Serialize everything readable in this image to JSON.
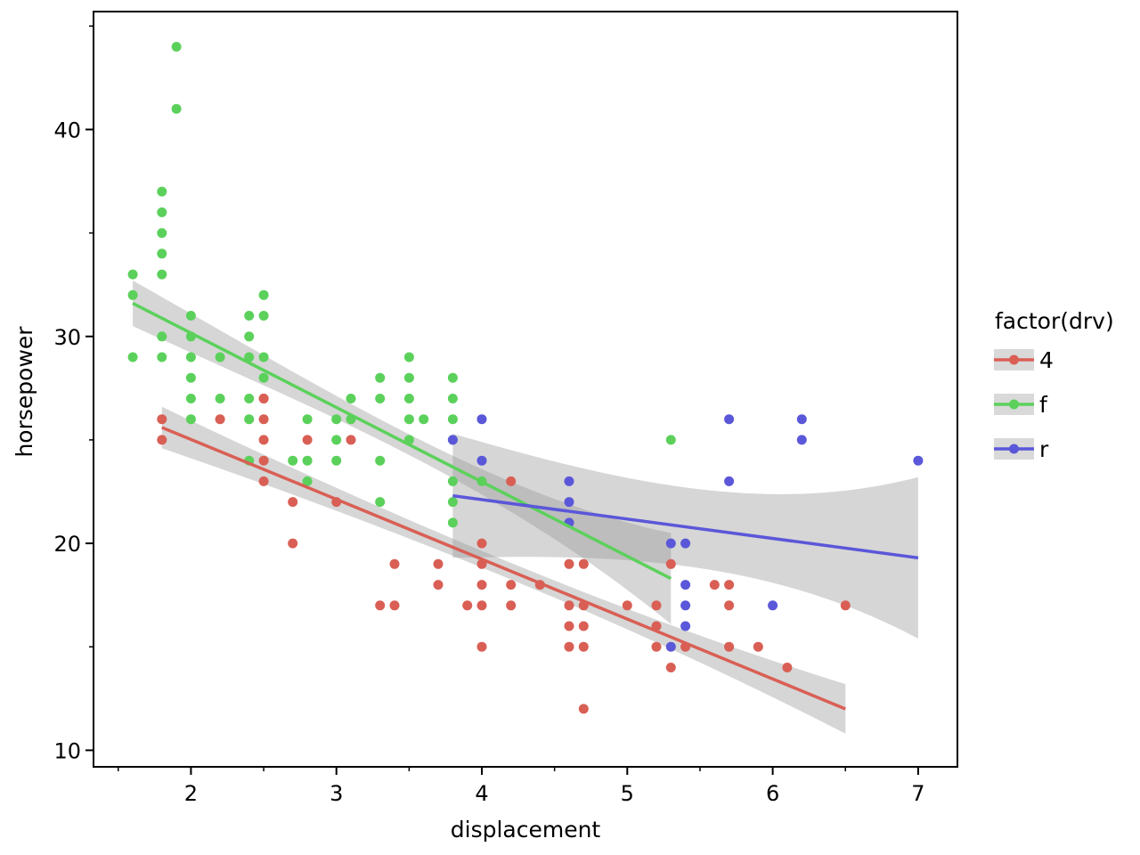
{
  "chart_data": {
    "type": "scatter",
    "xlabel": "displacement",
    "ylabel": "horsepower",
    "xlim": [
      1.33,
      7.27
    ],
    "ylim": [
      9.2,
      45.7
    ],
    "x_ticks": [
      2,
      3,
      4,
      5,
      6,
      7
    ],
    "x_minor_ticks": [
      1.5,
      2.5,
      3.5,
      4.5,
      5.5,
      6.5
    ],
    "y_ticks": [
      10,
      20,
      30,
      40
    ],
    "y_minor_ticks": [
      15,
      25,
      35,
      45
    ],
    "grid": false,
    "legend": {
      "title": "factor(drv)",
      "position": "right"
    },
    "series": [
      {
        "name": "4",
        "color": "#d95f55",
        "points": [
          [
            1.8,
            26
          ],
          [
            1.8,
            25
          ],
          [
            2.2,
            26
          ],
          [
            2.5,
            27
          ],
          [
            2.5,
            26
          ],
          [
            2.5,
            25
          ],
          [
            2.5,
            24
          ],
          [
            2.5,
            23
          ],
          [
            2.5,
            27
          ],
          [
            2.7,
            22
          ],
          [
            2.7,
            20
          ],
          [
            2.8,
            25
          ],
          [
            3.0,
            22
          ],
          [
            3.1,
            25
          ],
          [
            3.3,
            17
          ],
          [
            3.4,
            19
          ],
          [
            3.4,
            17
          ],
          [
            3.7,
            19
          ],
          [
            3.7,
            18
          ],
          [
            3.9,
            17
          ],
          [
            4.0,
            20
          ],
          [
            4.0,
            19
          ],
          [
            4.0,
            18
          ],
          [
            4.0,
            17
          ],
          [
            4.0,
            15
          ],
          [
            4.2,
            23
          ],
          [
            4.2,
            18
          ],
          [
            4.2,
            17
          ],
          [
            4.4,
            18
          ],
          [
            4.6,
            19
          ],
          [
            4.6,
            17
          ],
          [
            4.6,
            16
          ],
          [
            4.6,
            15
          ],
          [
            4.7,
            19
          ],
          [
            4.7,
            17
          ],
          [
            4.7,
            16
          ],
          [
            4.7,
            15
          ],
          [
            4.7,
            12
          ],
          [
            5.0,
            17
          ],
          [
            5.2,
            17
          ],
          [
            5.2,
            16
          ],
          [
            5.2,
            15
          ],
          [
            5.3,
            19
          ],
          [
            5.3,
            14
          ],
          [
            5.4,
            15
          ],
          [
            5.6,
            18
          ],
          [
            5.7,
            18
          ],
          [
            5.7,
            17
          ],
          [
            5.7,
            15
          ],
          [
            5.9,
            15
          ],
          [
            6.1,
            14
          ],
          [
            6.5,
            17
          ]
        ],
        "fit": {
          "x_range": [
            1.8,
            6.5
          ],
          "y_range": [
            25.6,
            12.0
          ],
          "band_halfwidth_ends": [
            1.0,
            1.2
          ],
          "band_halfwidth_mid": 0.4
        }
      },
      {
        "name": "f",
        "color": "#5bd15b",
        "points": [
          [
            1.6,
            33
          ],
          [
            1.6,
            32
          ],
          [
            1.6,
            29
          ],
          [
            1.8,
            37
          ],
          [
            1.8,
            36
          ],
          [
            1.8,
            35
          ],
          [
            1.8,
            34
          ],
          [
            1.8,
            33
          ],
          [
            1.8,
            30
          ],
          [
            1.8,
            29
          ],
          [
            1.9,
            44
          ],
          [
            1.9,
            41
          ],
          [
            2.0,
            31
          ],
          [
            2.0,
            30
          ],
          [
            2.0,
            29
          ],
          [
            2.0,
            28
          ],
          [
            2.0,
            27
          ],
          [
            2.0,
            26
          ],
          [
            2.2,
            29
          ],
          [
            2.2,
            27
          ],
          [
            2.4,
            31
          ],
          [
            2.4,
            30
          ],
          [
            2.4,
            29
          ],
          [
            2.4,
            27
          ],
          [
            2.4,
            26
          ],
          [
            2.4,
            24
          ],
          [
            2.5,
            32
          ],
          [
            2.5,
            31
          ],
          [
            2.5,
            29
          ],
          [
            2.5,
            28
          ],
          [
            2.7,
            24
          ],
          [
            2.8,
            26
          ],
          [
            2.8,
            24
          ],
          [
            2.8,
            23
          ],
          [
            3.0,
            26
          ],
          [
            3.0,
            25
          ],
          [
            3.0,
            24
          ],
          [
            3.1,
            27
          ],
          [
            3.1,
            26
          ],
          [
            3.3,
            28
          ],
          [
            3.3,
            27
          ],
          [
            3.3,
            24
          ],
          [
            3.3,
            22
          ],
          [
            3.5,
            29
          ],
          [
            3.5,
            28
          ],
          [
            3.5,
            27
          ],
          [
            3.5,
            26
          ],
          [
            3.5,
            25
          ],
          [
            3.6,
            26
          ],
          [
            3.8,
            28
          ],
          [
            3.8,
            27
          ],
          [
            3.8,
            26
          ],
          [
            3.8,
            25
          ],
          [
            3.8,
            23
          ],
          [
            3.8,
            22
          ],
          [
            3.8,
            21
          ],
          [
            4.0,
            23
          ],
          [
            5.3,
            25
          ]
        ],
        "fit": {
          "x_range": [
            1.6,
            5.3
          ],
          "y_range": [
            31.6,
            18.3
          ],
          "band_halfwidth_ends": [
            1.1,
            2.2
          ],
          "band_halfwidth_mid": 0.5
        }
      },
      {
        "name": "r",
        "color": "#5b57d9",
        "points": [
          [
            3.8,
            25
          ],
          [
            4.0,
            26
          ],
          [
            4.0,
            24
          ],
          [
            4.6,
            23
          ],
          [
            4.6,
            22
          ],
          [
            4.6,
            21
          ],
          [
            5.3,
            20
          ],
          [
            5.3,
            15
          ],
          [
            5.4,
            20
          ],
          [
            5.4,
            18
          ],
          [
            5.4,
            17
          ],
          [
            5.4,
            16
          ],
          [
            5.7,
            26
          ],
          [
            5.7,
            23
          ],
          [
            6.0,
            17
          ],
          [
            6.2,
            26
          ],
          [
            6.2,
            25
          ],
          [
            7.0,
            24
          ]
        ],
        "fit": {
          "x_range": [
            3.8,
            7.0
          ],
          "y_range": [
            22.3,
            19.3
          ],
          "band_halfwidth_ends": [
            3.0,
            3.9
          ],
          "band_halfwidth_mid": 1.9
        }
      }
    ]
  }
}
